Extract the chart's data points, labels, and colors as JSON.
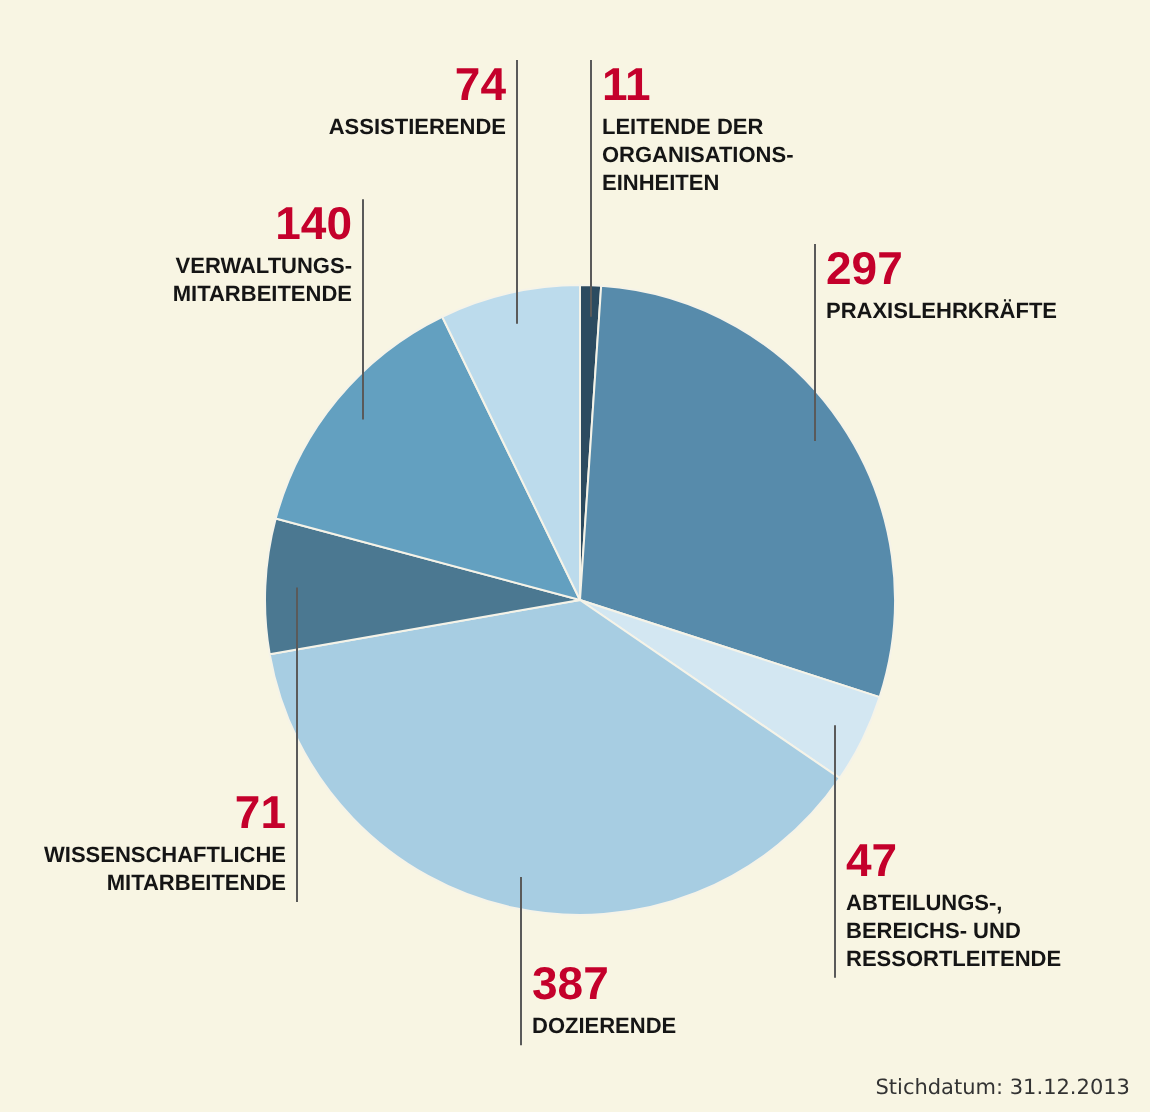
{
  "chart_data": {
    "type": "pie",
    "categories": [
      "LEITENDE DER\nORGANISATIONS-\nEINHEITEN",
      "PRAXISLEHRKRÄFTE",
      "ABTEILUNGS-,\nBEREICHS- UND\nRESSORTLEITENDE",
      "DOZIERENDE",
      "WISSENSCHAFTLICHE\nMITARBEITENDE",
      "VERWALTUNGS-\nMITARBEITENDE",
      "ASSISTIERENDE"
    ],
    "values": [
      11,
      297,
      47,
      387,
      71,
      140,
      74
    ],
    "colors": [
      "#2c4b60",
      "#578bab",
      "#d3e7f2",
      "#a7cde2",
      "#4b7891",
      "#63a0c0",
      "#bcdbec"
    ],
    "data_labels": true,
    "annotations": [
      "Stichdatum: 31.12.2013"
    ]
  }
}
